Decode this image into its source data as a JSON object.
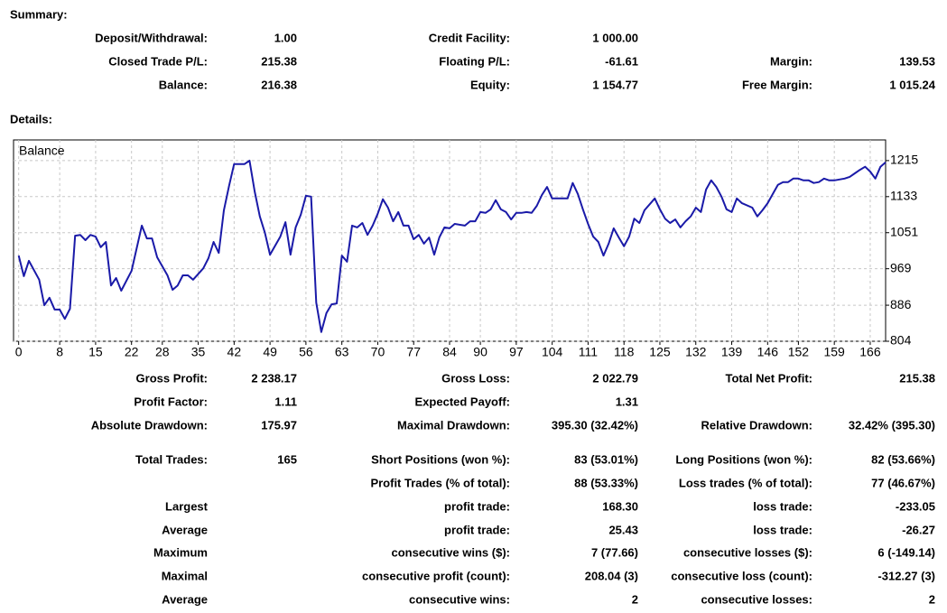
{
  "summary": {
    "title": "Summary:",
    "rows": [
      [
        "Deposit/Withdrawal:",
        "1.00",
        "Credit Facility:",
        "1 000.00",
        null,
        null
      ],
      [
        "Closed Trade P/L:",
        "215.38",
        "Floating P/L:",
        "-61.61",
        "Margin:",
        "139.53"
      ],
      [
        "Balance:",
        "216.38",
        "Equity:",
        "1 154.77",
        "Free Margin:",
        "1 015.24"
      ]
    ]
  },
  "details": {
    "title": "Details:",
    "rows": [
      [
        "Gross Profit:",
        "2 238.17",
        "Gross Loss:",
        "2 022.79",
        "Total Net Profit:",
        "215.38"
      ],
      [
        "Profit Factor:",
        "1.11",
        "Expected Payoff:",
        "1.31",
        null,
        null
      ],
      [
        "Absolute Drawdown:",
        "175.97",
        "Maximal Drawdown:",
        "395.30 (32.42%)",
        "Relative Drawdown:",
        "32.42% (395.30)"
      ],
      [
        "Total Trades:",
        "165",
        "Short Positions (won %):",
        "83 (53.01%)",
        "Long Positions (won %):",
        "82 (53.66%)"
      ],
      [
        null,
        null,
        "Profit Trades (% of total):",
        "88 (53.33%)",
        "Loss trades (% of total):",
        "77 (46.67%)"
      ],
      [
        "Largest",
        null,
        "profit trade:",
        "168.30",
        "loss trade:",
        "-233.05"
      ],
      [
        "Average",
        null,
        "profit trade:",
        "25.43",
        "loss trade:",
        "-26.27"
      ],
      [
        "Maximum",
        null,
        "consecutive wins ($):",
        "7 (77.66)",
        "consecutive losses ($):",
        "6 (-149.14)"
      ],
      [
        "Maximal",
        null,
        "consecutive profit (count):",
        "208.04 (3)",
        "consecutive loss (count):",
        "-312.27 (3)"
      ],
      [
        "Average",
        null,
        "consecutive wins:",
        "2",
        "consecutive losses:",
        "2"
      ]
    ]
  },
  "chart_data": {
    "type": "line",
    "x": [
      0,
      1,
      2,
      4,
      5,
      6,
      7,
      8,
      9,
      10,
      11,
      12,
      13,
      14,
      15,
      16,
      17,
      18,
      19,
      20,
      22,
      24,
      25,
      26,
      27,
      29,
      30,
      31,
      32,
      33,
      34,
      36,
      37,
      38,
      39,
      40,
      41,
      42,
      43,
      44,
      45,
      46,
      47,
      48,
      49,
      51,
      52,
      53,
      54,
      55,
      56,
      57,
      58,
      59,
      60,
      61,
      62,
      63,
      64,
      65,
      66,
      67,
      68,
      69,
      70,
      71,
      72,
      73,
      74,
      75,
      76,
      77,
      78,
      79,
      80,
      81,
      82,
      83,
      84,
      85,
      87,
      88,
      89,
      90,
      91,
      92,
      93,
      94,
      95,
      96,
      97,
      98,
      99,
      100,
      101,
      102,
      103,
      104,
      106,
      107,
      108,
      109,
      110,
      111,
      112,
      113,
      114,
      115,
      116,
      117,
      118,
      119,
      120,
      121,
      122,
      124,
      125,
      126,
      127,
      128,
      129,
      130,
      131,
      132,
      133,
      134,
      135,
      136,
      137,
      138,
      139,
      140,
      141,
      143,
      144,
      145,
      146,
      147,
      148,
      149,
      150,
      151,
      152,
      153,
      154,
      155,
      156,
      157,
      158,
      159,
      161,
      162,
      163,
      164,
      165,
      166,
      167,
      168,
      169
    ],
    "series": [
      {
        "name": "Balance",
        "color": "#1a1aa8",
        "values": [
          999,
          952,
          987,
          944,
          886,
          903,
          876,
          876,
          855,
          878,
          1044,
          1046,
          1034,
          1046,
          1042,
          1018,
          1030,
          931,
          948,
          919,
          964,
          1067,
          1038,
          1038,
          995,
          954,
          921,
          931,
          954,
          954,
          944,
          970,
          993,
          1030,
          1005,
          1102,
          1157,
          1207,
          1207,
          1207,
          1215,
          1145,
          1088,
          1051,
          1001,
          1042,
          1075,
          1001,
          1063,
          1092,
          1135,
          1133,
          892,
          825,
          868,
          888,
          890,
          999,
          985,
          1067,
          1063,
          1073,
          1046,
          1067,
          1094,
          1127,
          1108,
          1077,
          1098,
          1067,
          1067,
          1036,
          1046,
          1026,
          1040,
          1001,
          1040,
          1063,
          1061,
          1071,
          1067,
          1077,
          1077,
          1098,
          1096,
          1104,
          1125,
          1104,
          1098,
          1081,
          1096,
          1096,
          1098,
          1096,
          1112,
          1137,
          1155,
          1129,
          1129,
          1129,
          1164,
          1139,
          1104,
          1071,
          1042,
          1030,
          999,
          1026,
          1061,
          1040,
          1020,
          1042,
          1083,
          1073,
          1102,
          1129,
          1104,
          1083,
          1073,
          1081,
          1063,
          1077,
          1088,
          1108,
          1098,
          1149,
          1170,
          1155,
          1133,
          1104,
          1098,
          1129,
          1118,
          1108,
          1088,
          1102,
          1118,
          1139,
          1160,
          1166,
          1166,
          1174,
          1174,
          1170,
          1170,
          1164,
          1166,
          1174,
          1170,
          1170,
          1174,
          1178,
          1186,
          1194,
          1201,
          1190,
          1174,
          1201,
          1211
        ]
      }
    ],
    "xlim": [
      -1,
      169
    ],
    "ylim": [
      804,
      1262
    ],
    "xticks": [
      0,
      8,
      15,
      22,
      28,
      35,
      42,
      49,
      56,
      63,
      70,
      77,
      84,
      90,
      97,
      104,
      111,
      118,
      125,
      132,
      139,
      146,
      152,
      159,
      166
    ],
    "yticks": [
      804,
      886,
      969,
      1051,
      1133,
      1215
    ],
    "grid": true
  }
}
